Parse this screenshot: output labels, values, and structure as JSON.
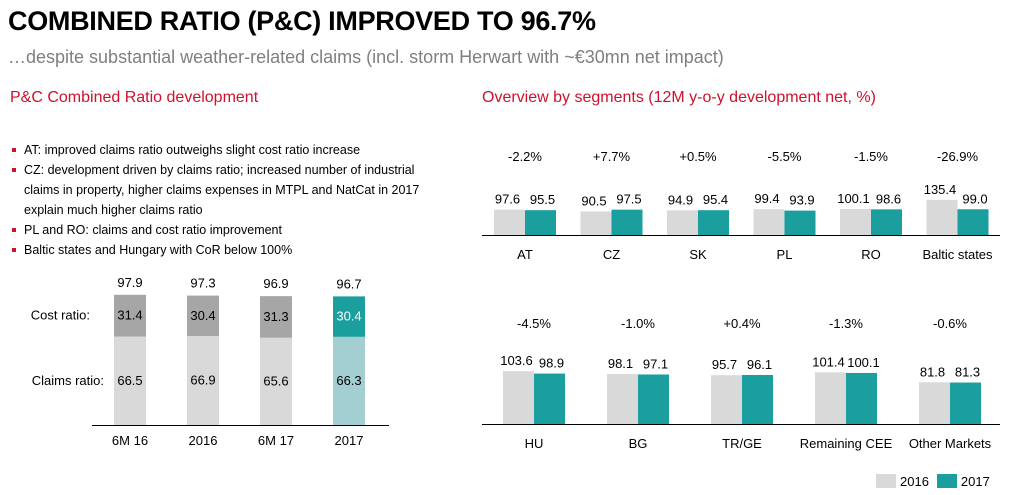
{
  "title": "COMBINED RATIO (P&C) IMPROVED TO 96.7%",
  "subtitle": "…despite substantial weather-related claims (incl. storm Herwart with ~€30mn net impact)",
  "left_section_title": "P&C Combined Ratio development",
  "right_section_title": "Overview by segments (12M y-o-y development net, %)",
  "bullets": [
    "AT: improved claims ratio outweighs slight cost ratio increase",
    "CZ: development driven by claims ratio; increased number of industrial claims in property, higher claims expenses in MTPL and NatCat in 2017 explain much higher claims ratio",
    "PL and RO: claims and cost ratio improvement",
    "Baltic states and Hungary with CoR below 100%"
  ],
  "colors": {
    "accent_red": "#d0102c",
    "teal": "#1a9e9e",
    "light_teal": "#a3cfd3",
    "dark_gray": "#a6a6a6",
    "light_gray": "#d9d9d9"
  },
  "legend": {
    "y2016": "2016",
    "y2017": "2017"
  },
  "chart_data": [
    {
      "type": "bar",
      "stacked": true,
      "categories": [
        "6M 16",
        "2016",
        "6M 17",
        "2017"
      ],
      "series": [
        {
          "name": "Claims ratio:",
          "values": [
            66.5,
            66.9,
            65.6,
            66.3
          ]
        },
        {
          "name": "Cost ratio:",
          "values": [
            31.4,
            30.4,
            31.3,
            30.4
          ]
        }
      ],
      "totals": [
        97.9,
        97.3,
        96.9,
        96.7
      ],
      "highlighted_category": "2017"
    },
    {
      "type": "bar",
      "categories": [
        "AT",
        "CZ",
        "SK",
        "PL",
        "RO",
        "Baltic states"
      ],
      "series": [
        {
          "name": "2016",
          "values": [
            97.6,
            90.5,
            94.9,
            99.4,
            100.1,
            135.4
          ]
        },
        {
          "name": "2017",
          "values": [
            95.5,
            97.5,
            95.4,
            93.9,
            98.6,
            99.0
          ]
        }
      ],
      "value_labels": {
        "2016": [
          "97.6",
          "90.5",
          "94.9",
          "99.4",
          "100.1",
          "135.4"
        ],
        "2017": [
          "95.5",
          "97.5",
          "95.4",
          "93.9",
          "98.6",
          "99.0"
        ]
      },
      "changes": [
        "-2.2%",
        "+7.7%",
        "+0.5%",
        "-5.5%",
        "-1.5%",
        "-26.9%"
      ]
    },
    {
      "type": "bar",
      "categories": [
        "HU",
        "BG",
        "TR/GE",
        "Remaining CEE",
        "Other Markets"
      ],
      "series": [
        {
          "name": "2016",
          "values": [
            103.6,
            98.1,
            95.7,
            101.4,
            81.8
          ]
        },
        {
          "name": "2017",
          "values": [
            98.9,
            97.1,
            96.1,
            100.1,
            81.3
          ]
        }
      ],
      "value_labels": {
        "2016": [
          "103.6",
          "98.1",
          "95.7",
          "101.4",
          "81.8"
        ],
        "2017": [
          "98.9",
          "97.1",
          "96.1",
          "100.1",
          "81.3"
        ]
      },
      "changes": [
        "-4.5%",
        "-1.0%",
        "+0.4%",
        "-1.3%",
        "-0.6%"
      ]
    }
  ]
}
